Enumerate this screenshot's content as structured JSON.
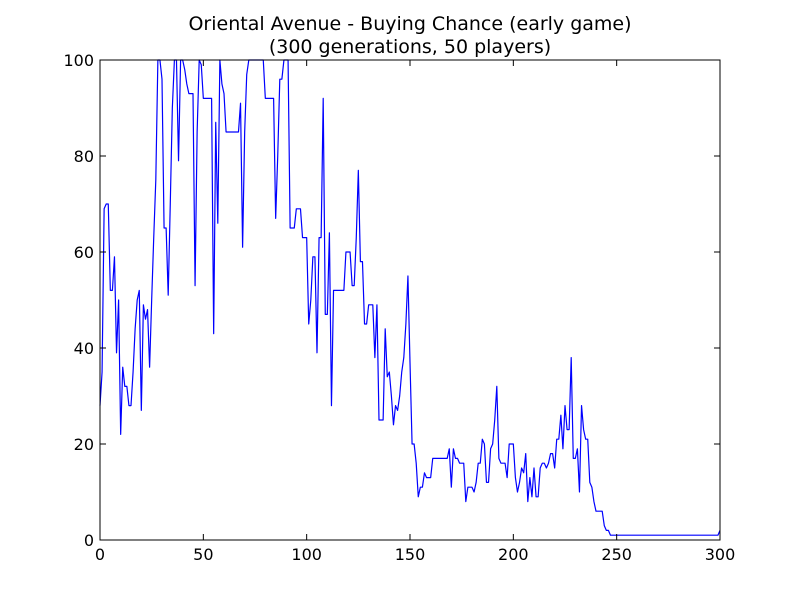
{
  "chart_data": {
    "type": "line",
    "title": "Oriental Avenue - Buying Chance (early game)",
    "subtitle": "(300 generations, 50 players)",
    "color": "#0000ff",
    "x": [
      0,
      1,
      2,
      3,
      4,
      5,
      6,
      7,
      8,
      9,
      10,
      11,
      12,
      13,
      14,
      15,
      16,
      17,
      18,
      19,
      20,
      21,
      22,
      23,
      24,
      25,
      26,
      27,
      28,
      29,
      30,
      31,
      32,
      33,
      34,
      35,
      36,
      37,
      38,
      39,
      40,
      41,
      42,
      43,
      45,
      46,
      47,
      48,
      49,
      50,
      54,
      55,
      56,
      57,
      58,
      59,
      60,
      61,
      67,
      68,
      69,
      70,
      71,
      72,
      79,
      80,
      84,
      85,
      86,
      87,
      88,
      89,
      91,
      92,
      94,
      95,
      97,
      98,
      100,
      101,
      102,
      103,
      104,
      105,
      106,
      107,
      108,
      109,
      110,
      111,
      112,
      113,
      118,
      119,
      121,
      122,
      123,
      124,
      125,
      126,
      127,
      128,
      129,
      130,
      132,
      133,
      134,
      135,
      137,
      138,
      139,
      140,
      141,
      142,
      143,
      144,
      145,
      146,
      147,
      148,
      149,
      150,
      151,
      152,
      153,
      154,
      155,
      156,
      157,
      158,
      160,
      161,
      168,
      169,
      170,
      171,
      172,
      173,
      174,
      176,
      177,
      178,
      180,
      181,
      182,
      183,
      184,
      185,
      186,
      187,
      188,
      189,
      190,
      191,
      192,
      193,
      194,
      196,
      197,
      198,
      200,
      201,
      202,
      203,
      204,
      205,
      206,
      207,
      208,
      209,
      210,
      211,
      212,
      213,
      214,
      215,
      216,
      217,
      218,
      219,
      220,
      221,
      222,
      223,
      224,
      225,
      226,
      227,
      228,
      229,
      230,
      231,
      232,
      233,
      234,
      235,
      236,
      237,
      238,
      239,
      240,
      243,
      244,
      245,
      246,
      247,
      299,
      300
    ],
    "values": [
      28,
      35,
      69,
      70,
      70,
      52,
      52,
      59,
      39,
      50,
      22,
      36,
      32,
      32,
      28,
      28,
      35,
      44,
      50,
      52,
      27,
      49,
      46,
      48,
      36,
      50,
      63,
      75,
      100,
      100,
      96,
      65,
      65,
      51,
      70,
      90,
      100,
      100,
      79,
      100,
      100,
      98,
      95,
      93,
      93,
      53,
      85,
      100,
      99,
      92,
      92,
      43,
      87,
      66,
      100,
      95,
      93,
      85,
      85,
      91,
      61,
      85,
      97,
      100,
      100,
      92,
      92,
      67,
      80,
      96,
      96,
      100,
      100,
      65,
      65,
      69,
      69,
      63,
      63,
      45,
      50,
      59,
      59,
      39,
      63,
      63,
      92,
      47,
      47,
      64,
      28,
      52,
      52,
      60,
      60,
      53,
      53,
      63,
      77,
      58,
      58,
      45,
      45,
      49,
      49,
      38,
      49,
      25,
      25,
      44,
      34,
      35,
      30,
      24,
      28,
      27,
      30,
      35,
      38,
      45,
      55,
      37,
      20,
      20,
      16,
      9,
      11,
      11,
      14,
      13,
      13,
      17,
      17,
      19,
      11,
      19,
      17,
      17,
      16,
      16,
      8,
      11,
      11,
      10,
      12,
      16,
      16,
      21,
      20,
      12,
      12,
      19,
      20,
      25,
      32,
      17,
      16,
      16,
      13,
      20,
      20,
      13,
      10,
      12,
      15,
      14,
      18,
      8,
      13,
      9,
      15,
      9,
      9,
      15,
      16,
      16,
      15,
      16,
      18,
      18,
      15,
      21,
      21,
      26,
      19,
      28,
      23,
      23,
      38,
      17,
      17,
      19,
      10,
      28,
      23,
      21,
      21,
      12,
      11,
      8,
      6,
      6,
      3,
      2,
      2,
      1,
      1,
      2
    ],
    "xlim": [
      0,
      300
    ],
    "xticks": [
      0,
      50,
      100,
      150,
      200,
      250,
      300
    ],
    "ylim": [
      0,
      100
    ],
    "yticks": [
      0,
      20,
      40,
      60,
      80,
      100
    ]
  }
}
